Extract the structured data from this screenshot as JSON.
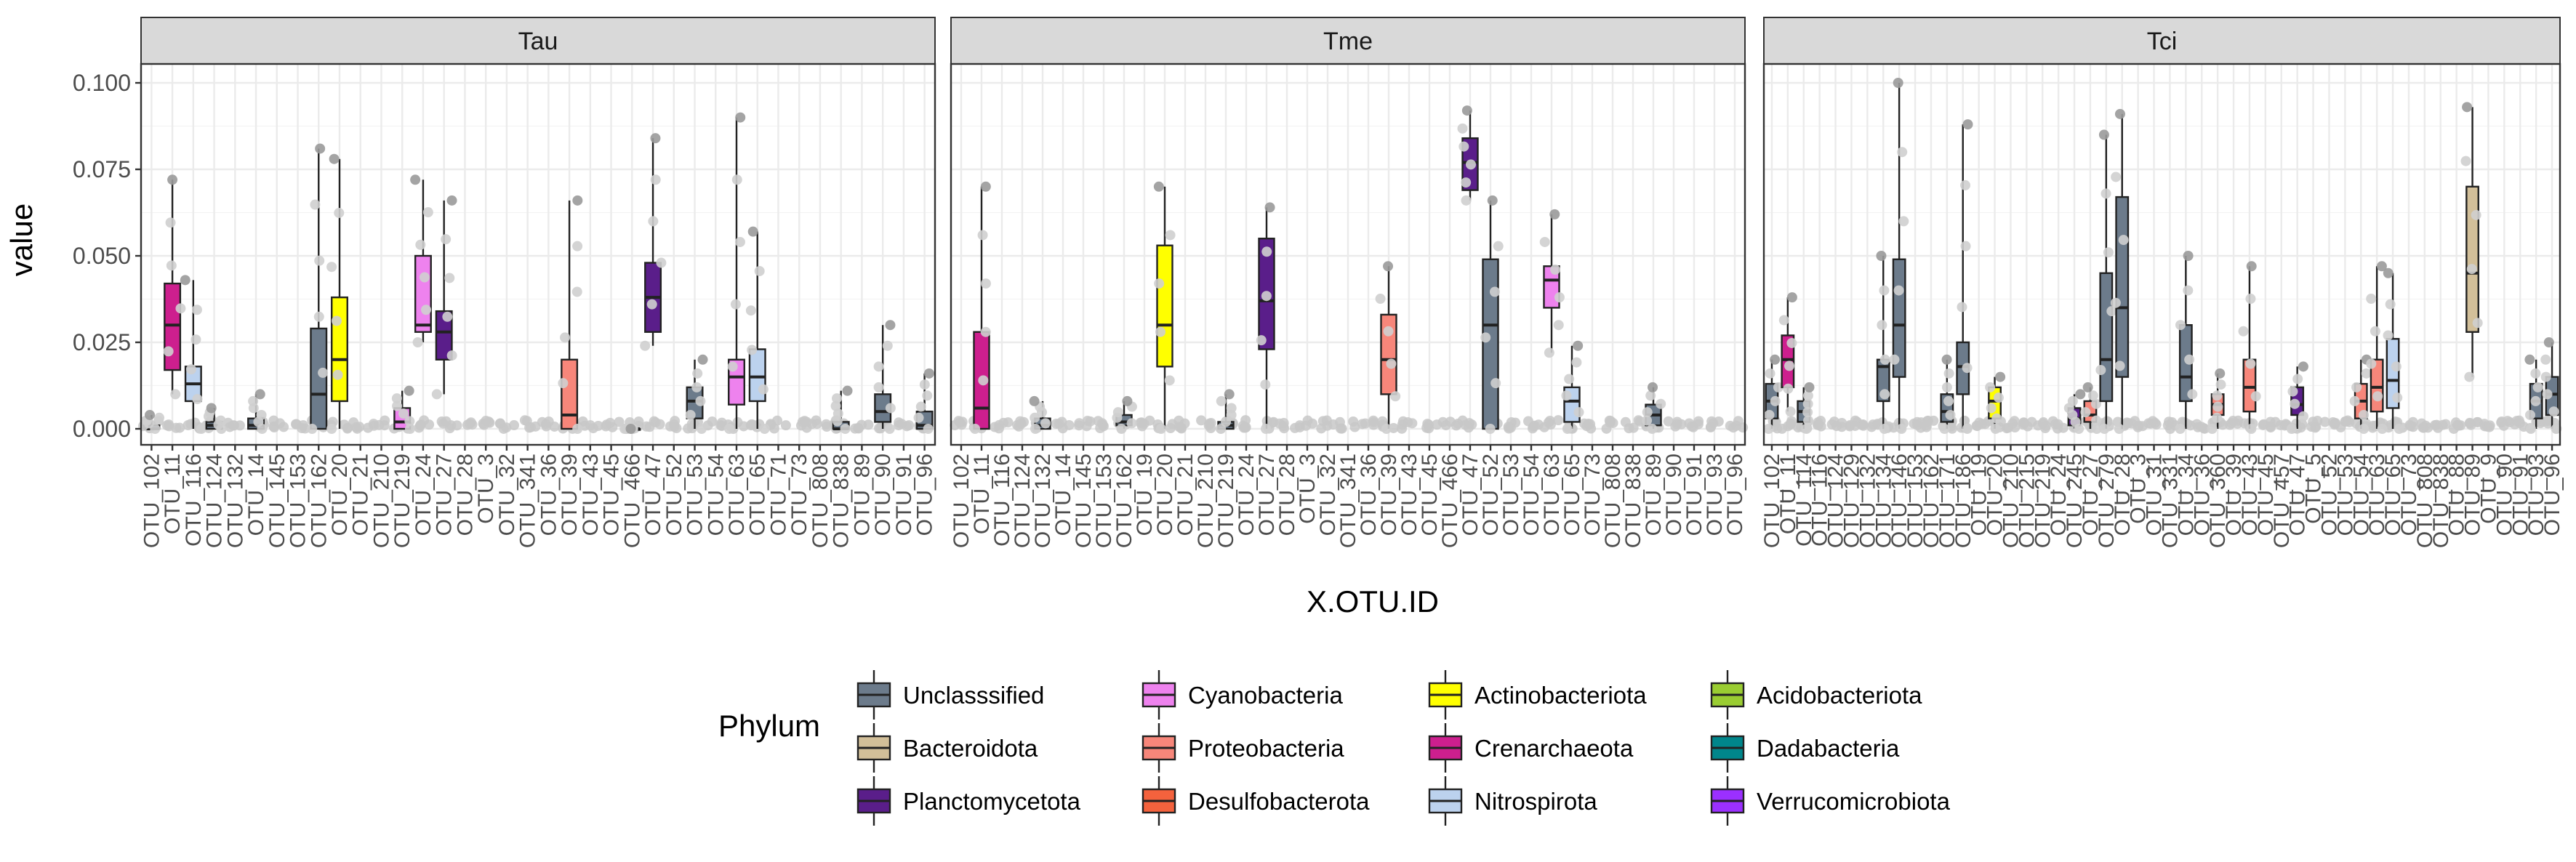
{
  "chart_data": {
    "type": "boxplot",
    "ylabel": "value",
    "xlabel": "X.OTU.ID",
    "ylim": [
      0,
      0.1
    ],
    "yticks": [
      0.0,
      0.025,
      0.05,
      0.075,
      0.1
    ],
    "ytick_labels": [
      "0.000",
      "0.025",
      "0.050",
      "0.075",
      "0.100"
    ],
    "facets": [
      "Tau",
      "Tme",
      "Tci"
    ],
    "grid": true,
    "legend": {
      "title": "Phylum",
      "position": "bottom",
      "entries": [
        {
          "name": "Unclasssified",
          "color": "#6c7b8b"
        },
        {
          "name": "Bacteroidota",
          "color": "#d2bf99"
        },
        {
          "name": "Planctomycetota",
          "color": "#5a1e8a"
        },
        {
          "name": "Cyanobacteria",
          "color": "#ee82ee"
        },
        {
          "name": "Proteobacteria",
          "color": "#f7867a"
        },
        {
          "name": "Desulfobacterota",
          "color": "#f4623d"
        },
        {
          "name": "Actinobacteriota",
          "color": "#ffff00"
        },
        {
          "name": "Crenarchaeota",
          "color": "#cd1f8e"
        },
        {
          "name": "Nitrospirota",
          "color": "#bcd2ee"
        },
        {
          "name": "Acidobacteriota",
          "color": "#9acd32"
        },
        {
          "name": "Dadabacteria",
          "color": "#00868b"
        },
        {
          "name": "Verrucomicrobiota",
          "color": "#9b30ff"
        }
      ]
    },
    "panels": [
      {
        "facet": "Tau",
        "x_tick_labels": [
          "OTU_102",
          "OTU_11",
          "OTU_116",
          "OTU_124",
          "OTU_132",
          "OTU_14",
          "OTU_145",
          "OTU_153",
          "OTU_162",
          "OTU_20",
          "OTU_21",
          "OTU_210",
          "OTU_219",
          "OTU_24",
          "OTU_27",
          "OTU_28",
          "OTU_3",
          "OTU_32",
          "OTU_341",
          "OTU_36",
          "OTU_39",
          "OTU_43",
          "OTU_45",
          "OTU_466",
          "OTU_47",
          "OTU_52",
          "OTU_53",
          "OTU_54",
          "OTU_63",
          "OTU_65",
          "OTU_71",
          "OTU_73",
          "OTU_808",
          "OTU_838",
          "OTU_89",
          "OTU_90",
          "OTU_91",
          "OTU_96"
        ],
        "boxes": [
          {
            "x": "OTU_102",
            "phylum": "Unclasssified",
            "min": 0.0,
            "q1": 0.0,
            "median": 0.0,
            "q3": 0.001,
            "max": 0.004
          },
          {
            "x": "OTU_11",
            "phylum": "Crenarchaeota",
            "min": 0.01,
            "q1": 0.017,
            "median": 0.03,
            "q3": 0.042,
            "max": 0.072
          },
          {
            "x": "OTU_116",
            "phylum": "Nitrospirota",
            "min": 0.0,
            "q1": 0.008,
            "median": 0.013,
            "q3": 0.018,
            "max": 0.043
          },
          {
            "x": "OTU_124",
            "phylum": "Unclasssified",
            "min": 0.0,
            "q1": 0.0,
            "median": 0.001,
            "q3": 0.002,
            "max": 0.006
          },
          {
            "x": "OTU_14",
            "phylum": "Unclasssified",
            "min": 0.0,
            "q1": 0.0,
            "median": 0.001,
            "q3": 0.003,
            "max": 0.01
          },
          {
            "x": "OTU_162",
            "phylum": "Unclasssified",
            "min": 0.0,
            "q1": 0.0,
            "median": 0.01,
            "q3": 0.029,
            "max": 0.081
          },
          {
            "x": "OTU_20",
            "phylum": "Actinobacteriota",
            "min": 0.0,
            "q1": 0.008,
            "median": 0.02,
            "q3": 0.038,
            "max": 0.078
          },
          {
            "x": "OTU_219",
            "phylum": "Cyanobacteria",
            "min": 0.0,
            "q1": 0.0,
            "median": 0.002,
            "q3": 0.006,
            "max": 0.011
          },
          {
            "x": "OTU_24",
            "phylum": "Cyanobacteria",
            "min": 0.025,
            "q1": 0.028,
            "median": 0.03,
            "q3": 0.05,
            "max": 0.072
          },
          {
            "x": "OTU_27",
            "phylum": "Planctomycetota",
            "min": 0.01,
            "q1": 0.02,
            "median": 0.028,
            "q3": 0.034,
            "max": 0.066
          },
          {
            "x": "OTU_39",
            "phylum": "Proteobacteria",
            "min": 0.0,
            "q1": 0.0,
            "median": 0.004,
            "q3": 0.02,
            "max": 0.066
          },
          {
            "x": "OTU_466",
            "phylum": "Unclasssified",
            "min": 0.0,
            "q1": 0.0,
            "median": 0.0,
            "q3": 0.0,
            "max": 0.0
          },
          {
            "x": "OTU_47",
            "phylum": "Planctomycetota",
            "min": 0.024,
            "q1": 0.028,
            "median": 0.038,
            "q3": 0.048,
            "max": 0.084
          },
          {
            "x": "OTU_53",
            "phylum": "Unclasssified",
            "min": 0.0,
            "q1": 0.003,
            "median": 0.008,
            "q3": 0.012,
            "max": 0.02
          },
          {
            "x": "OTU_63",
            "phylum": "Cyanobacteria",
            "min": 0.0,
            "q1": 0.007,
            "median": 0.015,
            "q3": 0.02,
            "max": 0.09
          },
          {
            "x": "OTU_65",
            "phylum": "Nitrospirota",
            "min": 0.0,
            "q1": 0.008,
            "median": 0.015,
            "q3": 0.023,
            "max": 0.057
          },
          {
            "x": "OTU_838",
            "phylum": "Unclasssified",
            "min": 0.0,
            "q1": 0.0,
            "median": 0.0,
            "q3": 0.002,
            "max": 0.011
          },
          {
            "x": "OTU_90",
            "phylum": "Unclasssified",
            "min": 0.0,
            "q1": 0.002,
            "median": 0.005,
            "q3": 0.01,
            "max": 0.03
          },
          {
            "x": "OTU_96",
            "phylum": "Unclasssified",
            "min": 0.0,
            "q1": 0.0,
            "median": 0.001,
            "q3": 0.005,
            "max": 0.016
          }
        ]
      },
      {
        "facet": "Tme",
        "x_tick_labels": [
          "OTU_102",
          "OTU_11",
          "OTU_116",
          "OTU_124",
          "OTU_132",
          "OTU_14",
          "OTU_145",
          "OTU_153",
          "OTU_162",
          "OTU_19",
          "OTU_20",
          "OTU_21",
          "OTU_210",
          "OTU_219",
          "OTU_24",
          "OTU_27",
          "OTU_28",
          "OTU_3",
          "OTU_32",
          "OTU_341",
          "OTU_36",
          "OTU_39",
          "OTU_43",
          "OTU_45",
          "OTU_466",
          "OTU_47",
          "OTU_52",
          "OTU_53",
          "OTU_54",
          "OTU_63",
          "OTU_65",
          "OTU_73",
          "OTU_808",
          "OTU_838",
          "OTU_89",
          "OTU_90",
          "OTU_91",
          "OTU_93",
          "OTU_96"
        ],
        "boxes": [
          {
            "x": "OTU_11",
            "phylum": "Crenarchaeota",
            "min": 0.0,
            "q1": 0.0,
            "median": 0.006,
            "q3": 0.028,
            "max": 0.07
          },
          {
            "x": "OTU_132",
            "phylum": "Unclasssified",
            "min": 0.0,
            "q1": 0.0,
            "median": 0.001,
            "q3": 0.003,
            "max": 0.008
          },
          {
            "x": "OTU_162",
            "phylum": "Unclasssified",
            "min": 0.0,
            "q1": 0.001,
            "median": 0.002,
            "q3": 0.004,
            "max": 0.008
          },
          {
            "x": "OTU_20",
            "phylum": "Actinobacteriota",
            "min": 0.0,
            "q1": 0.018,
            "median": 0.03,
            "q3": 0.053,
            "max": 0.07
          },
          {
            "x": "OTU_219",
            "phylum": "Unclasssified",
            "min": 0.0,
            "q1": 0.0,
            "median": 0.001,
            "q3": 0.002,
            "max": 0.01
          },
          {
            "x": "OTU_27",
            "phylum": "Planctomycetota",
            "min": 0.0,
            "q1": 0.023,
            "median": 0.037,
            "q3": 0.055,
            "max": 0.064
          },
          {
            "x": "OTU_39",
            "phylum": "Proteobacteria",
            "min": 0.0,
            "q1": 0.01,
            "median": 0.02,
            "q3": 0.033,
            "max": 0.047
          },
          {
            "x": "OTU_47",
            "phylum": "Planctomycetota",
            "min": 0.066,
            "q1": 0.069,
            "median": 0.077,
            "q3": 0.084,
            "max": 0.092
          },
          {
            "x": "OTU_52",
            "phylum": "Unclasssified",
            "min": 0.0,
            "q1": 0.0,
            "median": 0.03,
            "q3": 0.049,
            "max": 0.066
          },
          {
            "x": "OTU_63",
            "phylum": "Cyanobacteria",
            "min": 0.022,
            "q1": 0.035,
            "median": 0.043,
            "q3": 0.047,
            "max": 0.062
          },
          {
            "x": "OTU_65",
            "phylum": "Nitrospirota",
            "min": 0.0,
            "q1": 0.002,
            "median": 0.008,
            "q3": 0.012,
            "max": 0.024
          },
          {
            "x": "OTU_89",
            "phylum": "Unclasssified",
            "min": 0.0,
            "q1": 0.001,
            "median": 0.004,
            "q3": 0.007,
            "max": 0.012
          }
        ]
      },
      {
        "facet": "Tci",
        "x_tick_labels": [
          "OTU_102",
          "OTU_11",
          "OTU_114",
          "OTU_116",
          "OTU_124",
          "OTU_129",
          "OTU_132",
          "OTU_134",
          "OTU_146",
          "OTU_153",
          "OTU_162",
          "OTU_171",
          "OTU_186",
          "OTU_19",
          "OTU_20",
          "OTU_210",
          "OTU_215",
          "OTU_219",
          "OTU_24",
          "OTU_245",
          "OTU_27",
          "OTU_279",
          "OTU_28",
          "OTU_3",
          "OTU_31",
          "OTU_331",
          "OTU_34",
          "OTU_36",
          "OTU_360",
          "OTU_39",
          "OTU_43",
          "OTU_45",
          "OTU_457",
          "OTU_47",
          "OTU_5",
          "OTU_52",
          "OTU_53",
          "OTU_54",
          "OTU_63",
          "OTU_65",
          "OTU_73",
          "OTU_808",
          "OTU_838",
          "OTU_88",
          "OTU_89",
          "OTU_9",
          "OTU_90",
          "OTU_91",
          "OTU_93",
          "OTU_96"
        ],
        "boxes": [
          {
            "x": "OTU_102",
            "phylum": "Unclasssified",
            "min": 0.0,
            "q1": 0.003,
            "median": 0.008,
            "q3": 0.013,
            "max": 0.02
          },
          {
            "x": "OTU_11",
            "phylum": "Crenarchaeota",
            "min": 0.005,
            "q1": 0.012,
            "median": 0.02,
            "q3": 0.027,
            "max": 0.038
          },
          {
            "x": "OTU_114",
            "phylum": "Unclasssified",
            "min": 0.0,
            "q1": 0.002,
            "median": 0.005,
            "q3": 0.008,
            "max": 0.012
          },
          {
            "x": "OTU_134",
            "phylum": "Unclasssified",
            "min": 0.0,
            "q1": 0.008,
            "median": 0.018,
            "q3": 0.02,
            "max": 0.05
          },
          {
            "x": "OTU_146",
            "phylum": "Unclasssified",
            "min": 0.0,
            "q1": 0.015,
            "median": 0.03,
            "q3": 0.049,
            "max": 0.1
          },
          {
            "x": "OTU_171",
            "phylum": "Unclasssified",
            "min": 0.0,
            "q1": 0.002,
            "median": 0.005,
            "q3": 0.01,
            "max": 0.02
          },
          {
            "x": "OTU_186",
            "phylum": "Unclasssified",
            "min": 0.0,
            "q1": 0.01,
            "median": 0.018,
            "q3": 0.025,
            "max": 0.088
          },
          {
            "x": "OTU_20",
            "phylum": "Actinobacteriota",
            "min": 0.0,
            "q1": 0.003,
            "median": 0.008,
            "q3": 0.012,
            "max": 0.015
          },
          {
            "x": "OTU_245",
            "phylum": "Planctomycetota",
            "min": 0.0,
            "q1": 0.001,
            "median": 0.003,
            "q3": 0.006,
            "max": 0.01
          },
          {
            "x": "OTU_27",
            "phylum": "Proteobacteria",
            "min": 0.0,
            "q1": 0.002,
            "median": 0.004,
            "q3": 0.008,
            "max": 0.012
          },
          {
            "x": "OTU_279",
            "phylum": "Unclasssified",
            "min": 0.0,
            "q1": 0.008,
            "median": 0.02,
            "q3": 0.045,
            "max": 0.085
          },
          {
            "x": "OTU_28",
            "phylum": "Unclasssified",
            "min": 0.0,
            "q1": 0.015,
            "median": 0.035,
            "q3": 0.067,
            "max": 0.091
          },
          {
            "x": "OTU_34",
            "phylum": "Unclasssified",
            "min": 0.0,
            "q1": 0.008,
            "median": 0.015,
            "q3": 0.03,
            "max": 0.05
          },
          {
            "x": "OTU_360",
            "phylum": "Proteobacteria",
            "min": 0.0,
            "q1": 0.004,
            "median": 0.007,
            "q3": 0.01,
            "max": 0.016
          },
          {
            "x": "OTU_43",
            "phylum": "Proteobacteria",
            "min": 0.0,
            "q1": 0.005,
            "median": 0.012,
            "q3": 0.02,
            "max": 0.047
          },
          {
            "x": "OTU_47",
            "phylum": "Planctomycetota",
            "min": 0.0,
            "q1": 0.004,
            "median": 0.007,
            "q3": 0.012,
            "max": 0.018
          },
          {
            "x": "OTU_54",
            "phylum": "Proteobacteria",
            "min": 0.0,
            "q1": 0.003,
            "median": 0.008,
            "q3": 0.013,
            "max": 0.02
          },
          {
            "x": "OTU_63",
            "phylum": "Proteobacteria",
            "min": 0.0,
            "q1": 0.005,
            "median": 0.012,
            "q3": 0.02,
            "max": 0.047
          },
          {
            "x": "OTU_65",
            "phylum": "Nitrospirota",
            "min": 0.0,
            "q1": 0.006,
            "median": 0.014,
            "q3": 0.026,
            "max": 0.045
          },
          {
            "x": "OTU_89",
            "phylum": "Bacteroidota",
            "min": 0.015,
            "q1": 0.028,
            "median": 0.045,
            "q3": 0.07,
            "max": 0.093
          },
          {
            "x": "OTU_93",
            "phylum": "Unclasssified",
            "min": 0.0,
            "q1": 0.003,
            "median": 0.008,
            "q3": 0.013,
            "max": 0.02
          },
          {
            "x": "OTU_96",
            "phylum": "Unclasssified",
            "min": 0.0,
            "q1": 0.004,
            "median": 0.01,
            "q3": 0.015,
            "max": 0.025
          }
        ]
      }
    ]
  }
}
